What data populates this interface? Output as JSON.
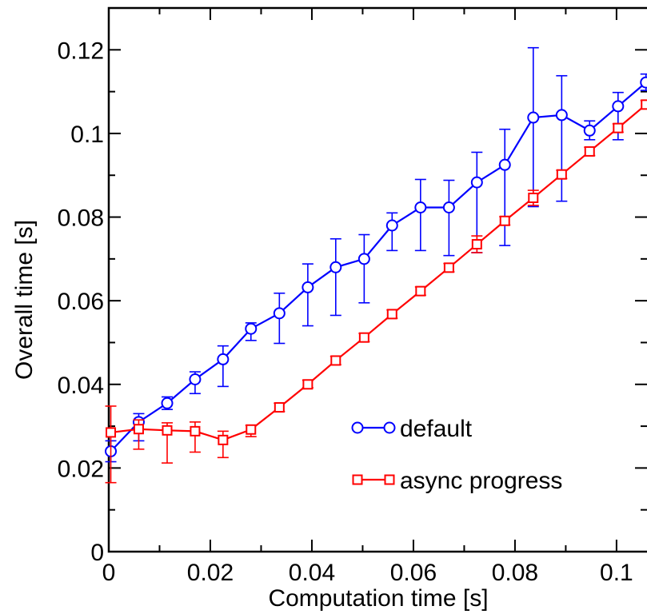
{
  "chart_data": {
    "type": "line",
    "xlabel": "Computation time [s]",
    "ylabel": "Overall time [s]",
    "xlim": [
      0,
      0.106
    ],
    "ylim": [
      0,
      0.13
    ],
    "x_ticks": [
      {
        "value": 0,
        "label": "0"
      },
      {
        "value": 0.02,
        "label": "0.02"
      },
      {
        "value": 0.04,
        "label": "0.04"
      },
      {
        "value": 0.06,
        "label": "0.06"
      },
      {
        "value": 0.08,
        "label": "0.08"
      },
      {
        "value": 0.1,
        "label": "0.1"
      }
    ],
    "y_ticks": [
      {
        "value": 0,
        "label": "0"
      },
      {
        "value": 0.02,
        "label": "0.02"
      },
      {
        "value": 0.04,
        "label": "0.04"
      },
      {
        "value": 0.06,
        "label": "0.06"
      },
      {
        "value": 0.08,
        "label": "0.08"
      },
      {
        "value": 0.1,
        "label": "0.1"
      },
      {
        "value": 0.12,
        "label": "0.12"
      }
    ],
    "grid": false,
    "legend_position": "bottom-right",
    "series": [
      {
        "name": "default",
        "color": "#0000ff",
        "marker": "circle",
        "points": [
          {
            "x": 0.0004,
            "y": 0.024,
            "lo": 0.0215,
            "hi": 0.0265
          },
          {
            "x": 0.0059,
            "y": 0.031,
            "lo": 0.0265,
            "hi": 0.033
          },
          {
            "x": 0.0115,
            "y": 0.0355,
            "lo": 0.034,
            "hi": 0.037
          },
          {
            "x": 0.017,
            "y": 0.0412,
            "lo": 0.0378,
            "hi": 0.043
          },
          {
            "x": 0.0225,
            "y": 0.046,
            "lo": 0.0395,
            "hi": 0.0492
          },
          {
            "x": 0.028,
            "y": 0.0533,
            "lo": 0.0505,
            "hi": 0.0547
          },
          {
            "x": 0.0336,
            "y": 0.057,
            "lo": 0.0498,
            "hi": 0.0618
          },
          {
            "x": 0.0392,
            "y": 0.0632,
            "lo": 0.054,
            "hi": 0.0688
          },
          {
            "x": 0.0447,
            "y": 0.068,
            "lo": 0.0565,
            "hi": 0.0748
          },
          {
            "x": 0.0503,
            "y": 0.07,
            "lo": 0.0595,
            "hi": 0.0758
          },
          {
            "x": 0.0558,
            "y": 0.078,
            "lo": 0.072,
            "hi": 0.081
          },
          {
            "x": 0.0614,
            "y": 0.0823,
            "lo": 0.072,
            "hi": 0.089
          },
          {
            "x": 0.067,
            "y": 0.0823,
            "lo": 0.0708,
            "hi": 0.0888
          },
          {
            "x": 0.0725,
            "y": 0.0883,
            "lo": 0.0715,
            "hi": 0.0955
          },
          {
            "x": 0.078,
            "y": 0.0925,
            "lo": 0.0732,
            "hi": 0.101
          },
          {
            "x": 0.0836,
            "y": 0.1038,
            "lo": 0.0825,
            "hi": 0.1205
          },
          {
            "x": 0.0892,
            "y": 0.1044,
            "lo": 0.0838,
            "hi": 0.1138
          },
          {
            "x": 0.0947,
            "y": 0.1007,
            "lo": 0.0985,
            "hi": 0.103
          },
          {
            "x": 0.1003,
            "y": 0.1065,
            "lo": 0.0985,
            "hi": 0.1098
          },
          {
            "x": 0.1058,
            "y": 0.1122,
            "lo": 0.1103,
            "hi": 0.1142
          }
        ]
      },
      {
        "name": "async progress",
        "color": "#ff0000",
        "marker": "square",
        "points": [
          {
            "x": 0.0004,
            "y": 0.0285,
            "lo": 0.0165,
            "hi": 0.0348
          },
          {
            "x": 0.0059,
            "y": 0.0293,
            "lo": 0.0245,
            "hi": 0.0315
          },
          {
            "x": 0.0115,
            "y": 0.029,
            "lo": 0.0212,
            "hi": 0.0308
          },
          {
            "x": 0.017,
            "y": 0.0288,
            "lo": 0.0238,
            "hi": 0.031
          },
          {
            "x": 0.0225,
            "y": 0.0267,
            "lo": 0.0225,
            "hi": 0.0288
          },
          {
            "x": 0.028,
            "y": 0.0292,
            "lo": 0.0275,
            "hi": 0.0302
          },
          {
            "x": 0.0336,
            "y": 0.0345,
            "lo": 0.0335,
            "hi": 0.0355
          },
          {
            "x": 0.0392,
            "y": 0.04,
            "lo": 0.0392,
            "hi": 0.041
          },
          {
            "x": 0.0447,
            "y": 0.0457,
            "lo": 0.0447,
            "hi": 0.0467
          },
          {
            "x": 0.0503,
            "y": 0.0512,
            "lo": 0.0502,
            "hi": 0.0522
          },
          {
            "x": 0.0558,
            "y": 0.0568,
            "lo": 0.0558,
            "hi": 0.0578
          },
          {
            "x": 0.0614,
            "y": 0.0623,
            "lo": 0.0613,
            "hi": 0.0633
          },
          {
            "x": 0.067,
            "y": 0.0679,
            "lo": 0.0669,
            "hi": 0.0689
          },
          {
            "x": 0.0725,
            "y": 0.0735,
            "lo": 0.0715,
            "hi": 0.0755
          },
          {
            "x": 0.078,
            "y": 0.0791,
            "lo": 0.0781,
            "hi": 0.0801
          },
          {
            "x": 0.0836,
            "y": 0.0846,
            "lo": 0.0828,
            "hi": 0.0864
          },
          {
            "x": 0.0892,
            "y": 0.0902,
            "lo": 0.0892,
            "hi": 0.0912
          },
          {
            "x": 0.0947,
            "y": 0.0957,
            "lo": 0.0947,
            "hi": 0.0967
          },
          {
            "x": 0.1003,
            "y": 0.1013,
            "lo": 0.1003,
            "hi": 0.1023
          },
          {
            "x": 0.1058,
            "y": 0.1069,
            "lo": 0.1059,
            "hi": 0.1079
          }
        ]
      }
    ]
  }
}
